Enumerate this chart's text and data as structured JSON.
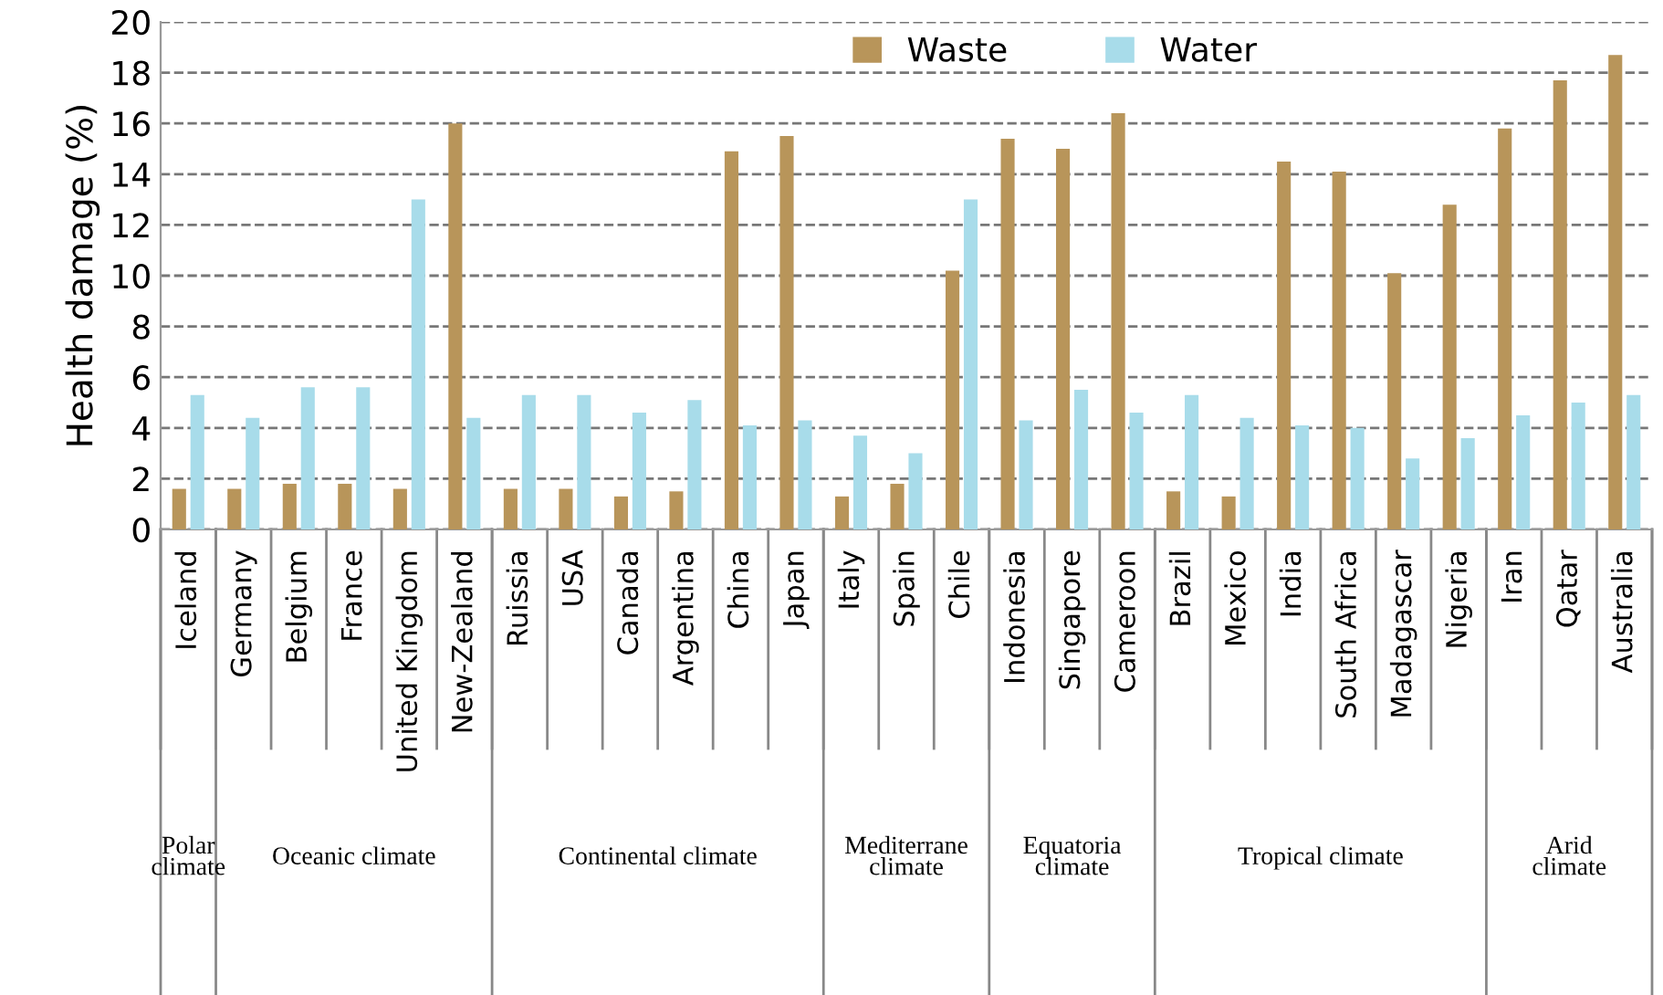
{
  "chart_data": {
    "type": "bar",
    "ylabel": "Health damage (%)",
    "categories": [
      "Iceland",
      "Germany",
      "Belgium",
      "France",
      "United Kingdom",
      "New-Zealand",
      "Ruissia",
      "USA",
      "Canada",
      "Argentina",
      "China",
      "Japan",
      "Italy",
      "Spain",
      "Chile",
      "Indonesia",
      "Singapore",
      "Cameroon",
      "Brazil",
      "Mexico",
      "India",
      "South Africa",
      "Madagascar",
      "Nigeria",
      "Iran",
      "Qatar",
      "Australia"
    ],
    "series": [
      {
        "name": "Waste",
        "color": "#b8955a",
        "values": [
          1.6,
          1.6,
          1.8,
          1.8,
          1.6,
          16.0,
          1.6,
          1.6,
          1.3,
          1.5,
          14.9,
          15.5,
          1.3,
          1.8,
          10.2,
          15.4,
          15.0,
          16.4,
          1.5,
          1.3,
          14.5,
          14.1,
          10.1,
          12.8,
          15.8,
          17.7,
          18.7
        ]
      },
      {
        "name": "Water",
        "color": "#a8dcea",
        "values": [
          5.3,
          4.4,
          5.6,
          5.6,
          13.0,
          4.4,
          5.3,
          5.3,
          4.6,
          5.1,
          4.1,
          4.3,
          3.7,
          3.0,
          13.0,
          4.3,
          5.5,
          4.6,
          5.3,
          4.4,
          4.1,
          4.0,
          2.8,
          3.6,
          4.5,
          5.0,
          5.3
        ]
      }
    ],
    "ylim": [
      0,
      20
    ],
    "yticks": [
      0,
      2,
      4,
      6,
      8,
      10,
      12,
      14,
      16,
      18,
      20
    ],
    "grid": "y",
    "legend": "top",
    "annotations": [
      "Polar climate",
      "Oceanic climate",
      "Continental climate",
      "Mediterrane climate",
      "Equatoria climate",
      "Tropical climate",
      "Arid climate"
    ]
  }
}
